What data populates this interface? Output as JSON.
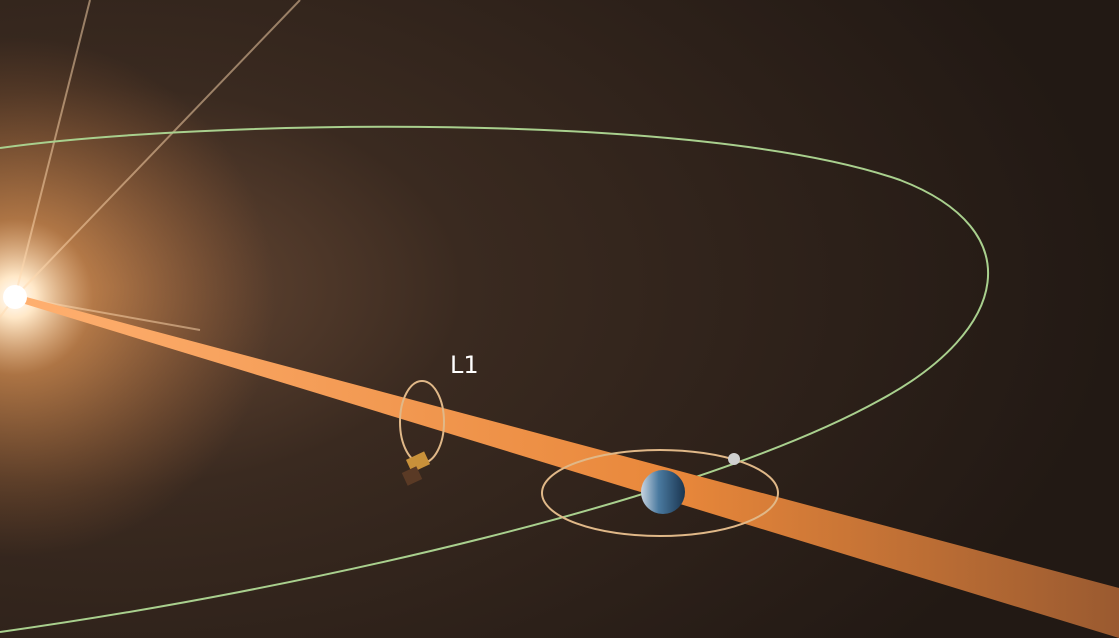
{
  "label": "L1"
}
